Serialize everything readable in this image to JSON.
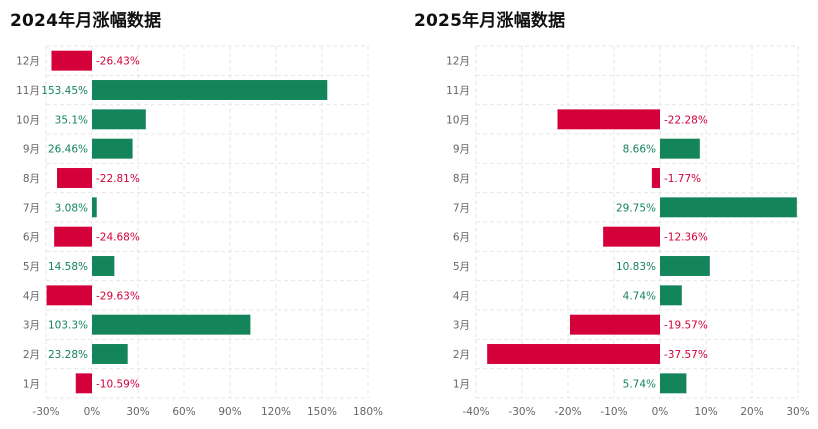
{
  "colors": {
    "up": "#14845a",
    "down": "#d3003a",
    "grid": "#e6e6e6",
    "axis_text": "#666666"
  },
  "chart_data": [
    {
      "type": "bar",
      "orientation": "horizontal",
      "title": "2024年月涨幅数据",
      "categories": [
        "1月",
        "2月",
        "3月",
        "4月",
        "5月",
        "6月",
        "7月",
        "8月",
        "9月",
        "10月",
        "11月",
        "12月"
      ],
      "values": [
        -10.59,
        23.28,
        103.3,
        -29.63,
        14.58,
        -24.68,
        3.08,
        -22.81,
        26.46,
        35.1,
        153.45,
        -26.43
      ],
      "value_labels": [
        "-10.59%",
        "23.28%",
        "103.3%",
        "-29.63%",
        "14.58%",
        "-24.68%",
        "3.08%",
        "-22.81%",
        "26.46%",
        "35.1%",
        "153.45%",
        "-26.43%"
      ],
      "xlim": [
        -30,
        180
      ],
      "xticks": [
        -30,
        0,
        30,
        60,
        90,
        120,
        150,
        180
      ],
      "xtick_labels": [
        "-30%",
        "0%",
        "30%",
        "60%",
        "90%",
        "120%",
        "150%",
        "180%"
      ],
      "grid": true,
      "legend": "none"
    },
    {
      "type": "bar",
      "orientation": "horizontal",
      "title": "2025年月涨幅数据",
      "categories": [
        "1月",
        "2月",
        "3月",
        "4月",
        "5月",
        "6月",
        "7月",
        "8月",
        "9月",
        "10月",
        "11月",
        "12月"
      ],
      "values": [
        5.74,
        -37.57,
        -19.57,
        4.74,
        10.83,
        -12.36,
        29.75,
        -1.77,
        8.66,
        -22.28,
        null,
        null
      ],
      "value_labels": [
        "5.74%",
        "-37.57%",
        "-19.57%",
        "4.74%",
        "10.83%",
        "-12.36%",
        "29.75%",
        "-1.77%",
        "8.66%",
        "-22.28%",
        "",
        ""
      ],
      "xlim": [
        -40,
        30
      ],
      "xticks": [
        -40,
        -30,
        -20,
        -10,
        0,
        10,
        20,
        30
      ],
      "xtick_labels": [
        "-40%",
        "-30%",
        "-20%",
        "-10%",
        "0%",
        "10%",
        "20%",
        "30%"
      ],
      "grid": true,
      "legend": "none"
    }
  ]
}
